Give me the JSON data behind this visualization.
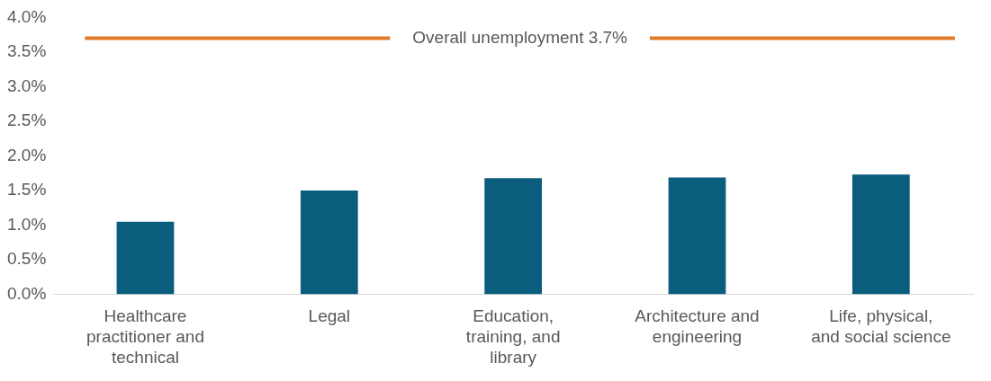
{
  "chart_data": {
    "type": "bar",
    "categories": [
      "Healthcare practitioner and technical",
      "Legal",
      "Education, training, and library",
      "Architecture and engineering",
      "Life, physical, and social science"
    ],
    "values": [
      1.05,
      1.5,
      1.68,
      1.69,
      1.73
    ],
    "color": "#0b5d7e",
    "ylim": [
      0,
      4
    ],
    "yticks": [
      {
        "value": 0,
        "label": "0.0%"
      },
      {
        "value": 0.5,
        "label": "0.5%"
      },
      {
        "value": 1,
        "label": "1.0%"
      },
      {
        "value": 1.5,
        "label": "1.5%"
      },
      {
        "value": 2,
        "label": "2.0%"
      },
      {
        "value": 2.5,
        "label": "2.5%"
      },
      {
        "value": 3,
        "label": "3.0%"
      },
      {
        "value": 3.5,
        "label": "3.5%"
      },
      {
        "value": 4,
        "label": "4.0%"
      }
    ],
    "ref_lines": [
      {
        "axis": "y",
        "value": 3.7,
        "label": "Overall unemployment 3.7%",
        "color": "#e07b2a"
      }
    ],
    "grid": false,
    "legend": false
  }
}
